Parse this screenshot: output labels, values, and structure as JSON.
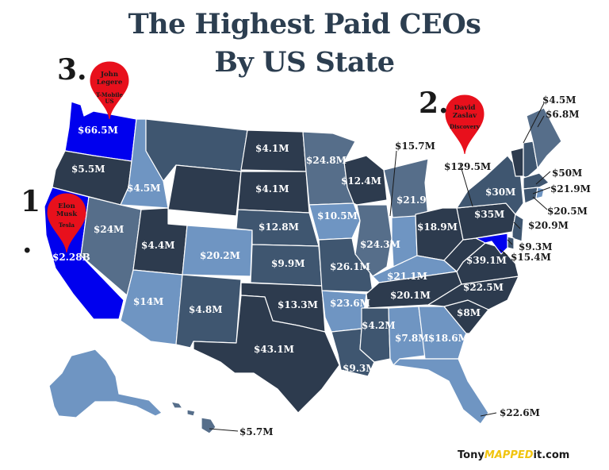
{
  "title_line1": "The Highest Paid CEOs",
  "title_line2": "By US State",
  "colors": {
    "darkest": "#2d3b4e",
    "dark": "#3f5670",
    "medium": "#566e8a",
    "light": "#6f95c2",
    "highlight": "#0000ee",
    "pin": "#e8101c",
    "title": "#2c3e50"
  },
  "rankings": [
    {
      "rank": "1",
      "suffix": ".",
      "name_line1": "Elon",
      "name_line2": "Musk",
      "company": "Tesla",
      "value": "$2.28B"
    },
    {
      "rank": "2.",
      "name_line1": "David",
      "name_line2": "Zaslav",
      "company": "Discovery",
      "value": "$129.5M"
    },
    {
      "rank": "3.",
      "name_line1": "John",
      "name_line2": "Legere",
      "company": "T-Mobile",
      "company_line2": "US",
      "value": "$66.5M"
    }
  ],
  "state_values": {
    "CA": "$2.28B",
    "WA": "$66.5M",
    "OR": "$5.5M",
    "ID": "$4.5M",
    "NV": "$24M",
    "UT": "$4.4M",
    "AZ": "$14M",
    "CO": "$20.2M",
    "NM": "$4.8M",
    "ND": "$4.1M",
    "SD": "$4.1M",
    "NE": "$12.8M",
    "KS": "$9.9M",
    "OK": "$13.3M",
    "TX": "$43.1M",
    "MN": "$24.8M",
    "WI": "$12.4M",
    "IA": "$10.5M",
    "IL": "$24.3M",
    "MO": "$26.1M",
    "AR": "$23.6M",
    "LA": "$9.3M",
    "MS": "$4.2M",
    "AL": "$7.8M",
    "GA": "$18.6M",
    "FL": "$22.6M",
    "MI": "$21.9M",
    "IN": "$15.7M",
    "OH": "$18.9M",
    "KY": "$21.1M",
    "TN": "$20.1M",
    "NC": "$22.5M",
    "SC": "$8M",
    "VA": "$39.1M",
    "WV": "$35M",
    "PA": "$35M",
    "NY": "$30M",
    "VT": "$4.5M",
    "ME": "$6.8M",
    "MA": "$50M",
    "CT": "$21.9M",
    "NJ": "$20.9M",
    "RI": "$20.5M",
    "DE": "$9.3M",
    "MD": "$15.4M",
    "HI": "$5.7M"
  },
  "brand": {
    "part1": "Tony",
    "part2": "MAPPED",
    "part3": "it.com"
  }
}
